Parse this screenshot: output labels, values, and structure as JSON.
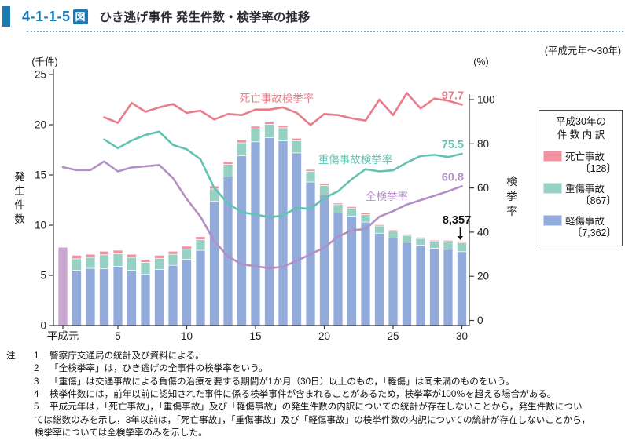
{
  "header": {
    "figure_number": "4-1-1-5",
    "figure_badge": "図",
    "title": "ひき逃げ事件 発生件数・検挙率の推移",
    "period": "(平成元年～30年)"
  },
  "chart_data": {
    "type": "bar+line",
    "title": "ひき逃げ事件 発生件数・検挙率の推移",
    "bars_unit": "千件",
    "lines_unit": "%",
    "left_axis": {
      "unit": "(千件)",
      "title": "発生件数",
      "ticks": [
        0,
        5,
        10,
        15,
        20,
        25
      ],
      "range": [
        0,
        25
      ]
    },
    "right_axis": {
      "unit": "(%)",
      "title": "検挙率",
      "ticks": [
        0,
        20,
        40,
        60,
        80,
        100
      ],
      "range": [
        0,
        100
      ]
    },
    "x_axis": {
      "n_years": 30,
      "era": "平成",
      "ticks": [
        {
          "year": 1,
          "label": "平成元"
        },
        {
          "year": 5,
          "label": "5"
        },
        {
          "year": 10,
          "label": "10"
        },
        {
          "year": 15,
          "label": "15"
        },
        {
          "year": 20,
          "label": "20"
        },
        {
          "year": 25,
          "label": "25"
        },
        {
          "year": 30,
          "label": "30"
        }
      ]
    },
    "total_only_bar": {
      "year": 1,
      "value": 7.8,
      "color": "#c9a6cf"
    },
    "bar_series": [
      {
        "key": "light",
        "name": "軽傷事故",
        "color": "#92abdb",
        "values": [
          null,
          5.5,
          5.7,
          5.65,
          5.9,
          5.5,
          5.1,
          5.6,
          6.0,
          6.6,
          7.5,
          12.4,
          14.8,
          16.9,
          18.3,
          18.7,
          18.4,
          17.2,
          14.3,
          13.0,
          11.2,
          10.9,
          10.3,
          9.2,
          8.7,
          8.3,
          8.0,
          7.7,
          7.6,
          7.362
        ]
      },
      {
        "key": "serious",
        "name": "重傷事故",
        "color": "#97d1c4",
        "values": [
          null,
          1.15,
          1.1,
          1.4,
          1.25,
          1.3,
          1.2,
          1.1,
          1.1,
          1.0,
          1.05,
          1.2,
          1.25,
          1.3,
          1.3,
          1.35,
          1.3,
          1.2,
          1.05,
          0.95,
          0.85,
          0.8,
          0.75,
          0.72,
          0.7,
          0.68,
          0.67,
          0.68,
          0.76,
          0.867
        ]
      },
      {
        "key": "fatal",
        "name": "死亡事故",
        "color": "#f0929f",
        "values": [
          null,
          0.35,
          0.3,
          0.35,
          0.35,
          0.3,
          0.3,
          0.3,
          0.3,
          0.3,
          0.3,
          0.3,
          0.3,
          0.3,
          0.25,
          0.25,
          0.25,
          0.25,
          0.2,
          0.2,
          0.15,
          0.15,
          0.15,
          0.13,
          0.12,
          0.12,
          0.12,
          0.12,
          0.13,
          0.128
        ]
      }
    ],
    "line_series": [
      {
        "name": "死亡事故検挙率",
        "color": "#e87c8b",
        "start_year": 4,
        "end_label": "97.7",
        "values": [
          92,
          89.5,
          98.5,
          94.5,
          96.5,
          98,
          94,
          95,
          91,
          93.5,
          93,
          95.5,
          95.5,
          96.5,
          94,
          88.5,
          93.5,
          93,
          91.5,
          90.5,
          100,
          93,
          103,
          96,
          100.5,
          99.5,
          97.7
        ]
      },
      {
        "name": "重傷事故検挙率",
        "color": "#63c3b3",
        "start_year": 4,
        "end_label": "75.5",
        "values": [
          82,
          78,
          81.5,
          84,
          85.5,
          79.5,
          77.5,
          73,
          60,
          53,
          49,
          48,
          46.8,
          47.5,
          51,
          50.5,
          55.5,
          58.5,
          64,
          68.5,
          67.5,
          68,
          71.5,
          74.5,
          75,
          74,
          75.5
        ]
      },
      {
        "name": "全検挙率",
        "color": "#b38fc6",
        "start_year": 1,
        "end_label": "60.8",
        "values": [
          69.4,
          68.1,
          68.1,
          72,
          67.5,
          69.3,
          69.8,
          70.4,
          64.5,
          55,
          47,
          36,
          29,
          25.5,
          24.5,
          23.7,
          24.3,
          27,
          30,
          33,
          38,
          40.8,
          41.4,
          47,
          49.5,
          52.5,
          54.5,
          56.5,
          58.5,
          60.8
        ]
      }
    ],
    "annotation": {
      "text": "8,357",
      "year": 30
    }
  },
  "legend": {
    "title_line1": "平成30年の",
    "title_line2": "件数内訳",
    "items": [
      {
        "label": "死亡事故",
        "count": "〔128〕",
        "color": "#f0929f"
      },
      {
        "label": "重傷事故",
        "count": "〔867〕",
        "color": "#97d1c4"
      },
      {
        "label": "軽傷事故",
        "count": "〔7,362〕",
        "color": "#92abdb"
      }
    ]
  },
  "notes": {
    "label": "注",
    "items": [
      {
        "num": "1",
        "lines": [
          "警察庁交通局の統計及び資料による。"
        ]
      },
      {
        "num": "2",
        "lines": [
          "「全検挙率」は，ひき逃げの全事件の検挙率をいう。"
        ]
      },
      {
        "num": "3",
        "lines": [
          "「重傷」は交通事故による負傷の治療を要する期間が1か月（30日）以上のもの，「軽傷」は同未満のものをいう。"
        ]
      },
      {
        "num": "4",
        "lines": [
          "検挙件数には，前年以前に認知された事件に係る検挙事件が含まれることがあるため，検挙率が100％を超える場合がある。"
        ]
      },
      {
        "num": "5",
        "lines": [
          "平成元年は，「死亡事故」，「重傷事故」及び「軽傷事故」の発生件数の内訳についての統計が存在しないことから，発生件数につい",
          "ては総数のみを示し，3年以前は，「死亡事故」，「重傷事故」及び「軽傷事故」の検挙件数の内訳についての統計が存在しないことから，",
          "検挙率については全検挙率のみを示した。"
        ]
      }
    ]
  }
}
